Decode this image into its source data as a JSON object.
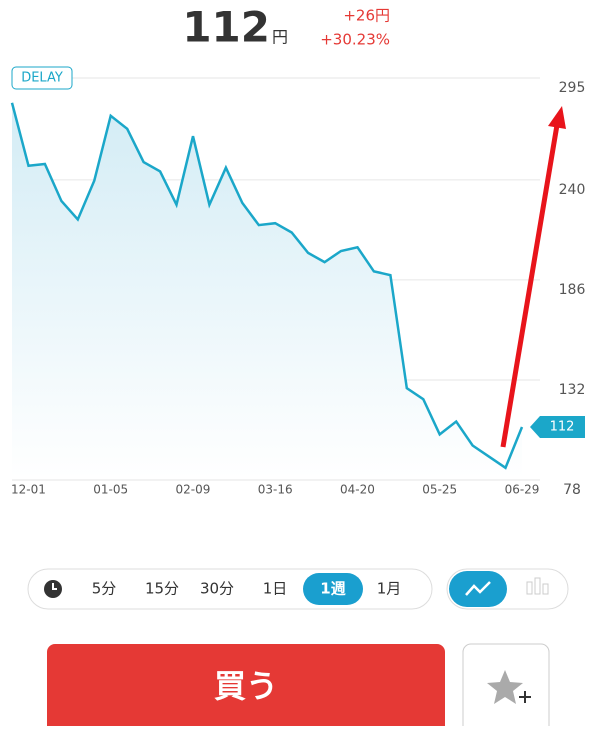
{
  "header": {
    "price": "112",
    "unit": "円",
    "change": "+26円",
    "change_pct": "+30.23%"
  },
  "chart_data": {
    "type": "line",
    "badge": "DELAY",
    "categories": [
      null,
      "12-01",
      null,
      null,
      null,
      null,
      "01-05",
      null,
      null,
      null,
      null,
      "02-09",
      null,
      null,
      null,
      null,
      "03-16",
      null,
      null,
      null,
      null,
      "04-20",
      null,
      null,
      null,
      null,
      "05-25",
      null,
      null,
      null,
      null,
      "06-29"
    ],
    "series": [
      {
        "color": "#1ba7c9",
        "values": [
          287,
          253,
          254,
          234,
          224,
          245,
          280,
          273,
          255,
          250,
          232,
          269,
          232,
          252,
          233,
          221,
          222,
          217,
          206,
          201,
          207,
          209,
          196,
          194,
          133,
          127,
          108,
          115,
          102,
          96,
          90,
          112
        ]
      }
    ],
    "ylim": [
      78,
      295
    ],
    "yticks": [
      78,
      132,
      186,
      240,
      295
    ],
    "grid": true
  },
  "timeframes": [
    "5分",
    "15分",
    "30分",
    "1日",
    "1週",
    "1月"
  ],
  "selected_timeframe": 4,
  "buy_button": "買う"
}
